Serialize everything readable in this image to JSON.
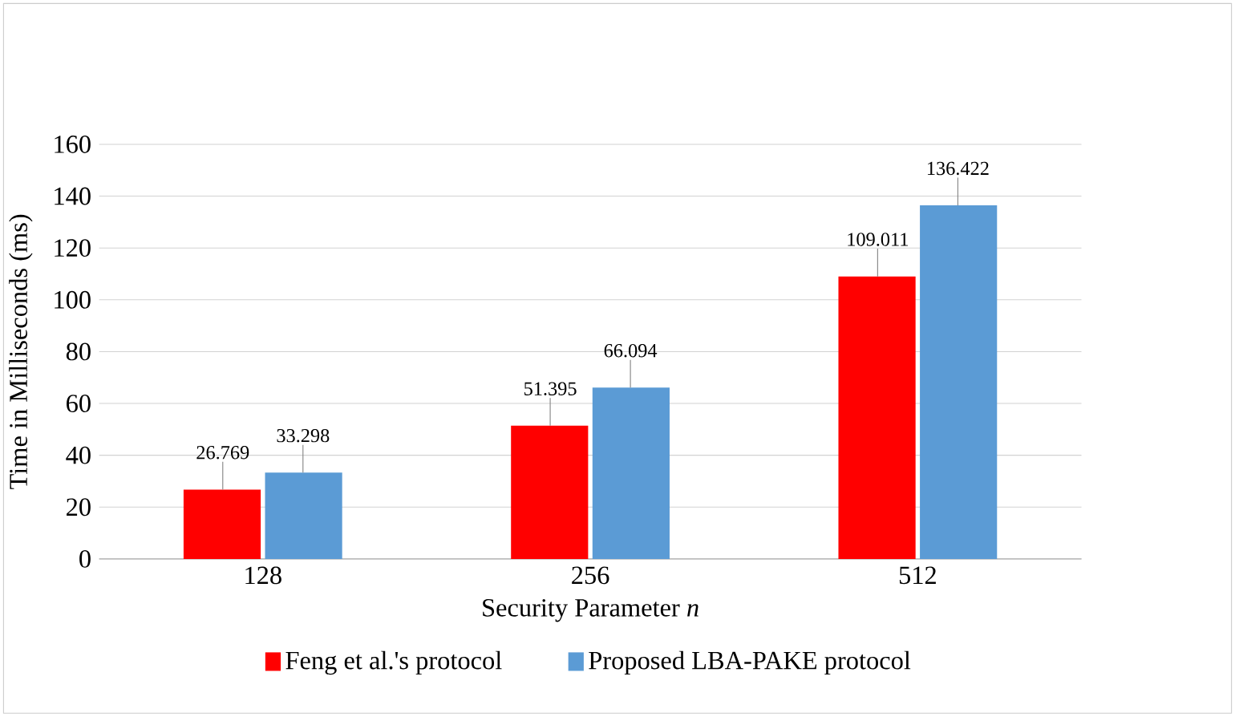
{
  "chart_data": {
    "type": "bar",
    "xlabel": "Security Parameter *n*",
    "ylabel": "Time in Milliseconds (ms)",
    "categories": [
      "128",
      "256",
      "512"
    ],
    "series": [
      {
        "name": "Feng et al.'s protocol",
        "color": "#ff0000",
        "values": [
          26.769,
          51.395,
          109.011
        ]
      },
      {
        "name": "Proposed LBA-PAKE protocol",
        "color": "#5b9bd5",
        "values": [
          33.298,
          66.094,
          136.422
        ]
      }
    ],
    "ylim": [
      0,
      160
    ],
    "yticks": [
      0,
      20,
      40,
      60,
      80,
      100,
      120,
      140,
      160
    ],
    "grid": "y",
    "legend": "bottom",
    "data_labels": true
  }
}
